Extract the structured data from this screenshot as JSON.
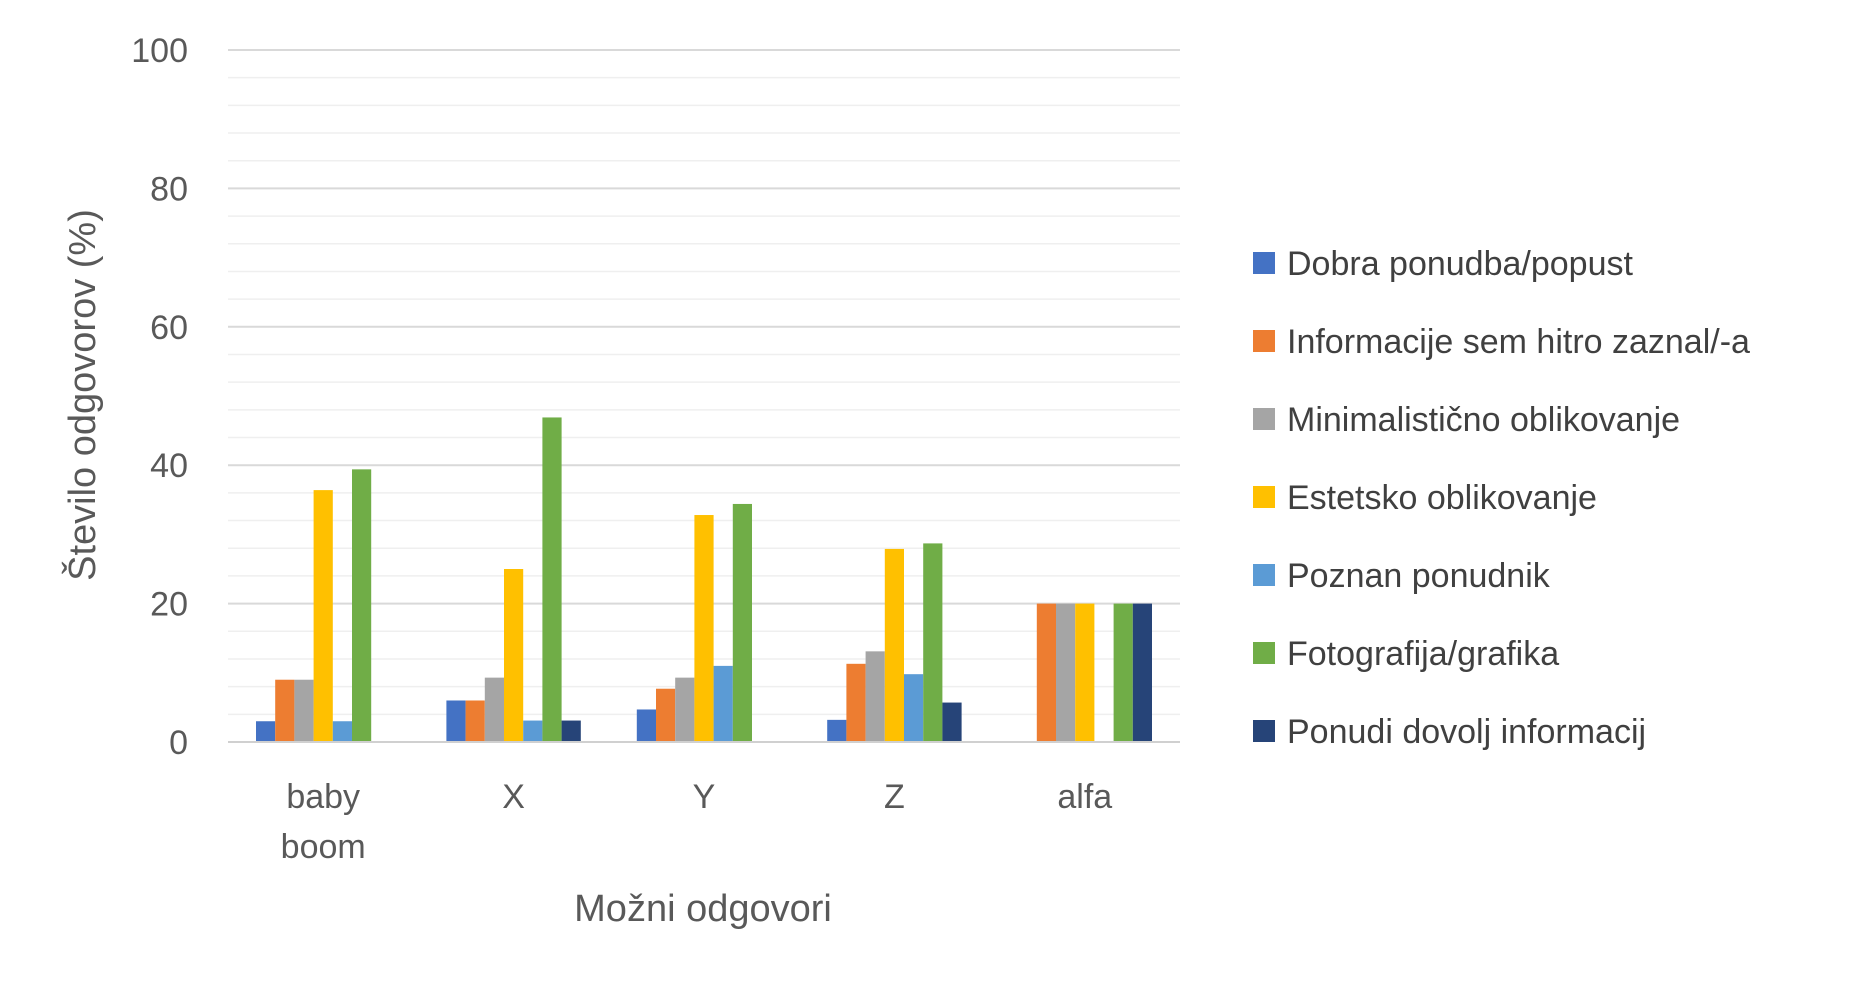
{
  "chart_data": {
    "type": "bar",
    "title": "",
    "xlabel": "Možni odgovori",
    "ylabel": "Število odgovorov (%)",
    "ylim": [
      0,
      100
    ],
    "yticks": [
      0,
      20,
      40,
      60,
      80,
      100
    ],
    "minor_grid_step": 4,
    "legend_position": "right",
    "categories": [
      [
        "baby",
        "boom"
      ],
      [
        "X"
      ],
      [
        "Y"
      ],
      [
        "Z"
      ],
      [
        "alfa"
      ]
    ],
    "series": [
      {
        "name": "Dobra ponudba/popust",
        "color": "#4472C4",
        "values": [
          3,
          6,
          4.7,
          3.2,
          0
        ]
      },
      {
        "name": "Informacije sem hitro zaznal/-a",
        "color": "#ED7D31",
        "values": [
          9,
          6,
          7.7,
          11.3,
          20
        ]
      },
      {
        "name": "Minimalistično oblikovanje",
        "color": "#A5A5A5",
        "values": [
          9,
          9.3,
          9.3,
          13.1,
          20
        ]
      },
      {
        "name": "Estetsko oblikovanje",
        "color": "#FFC000",
        "values": [
          36.4,
          25,
          32.8,
          27.9,
          20
        ]
      },
      {
        "name": "Poznan ponudnik",
        "color": "#5B9BD5",
        "values": [
          3,
          3.1,
          11,
          9.8,
          0
        ]
      },
      {
        "name": "Fotografija/grafika",
        "color": "#70AD47",
        "values": [
          39.4,
          46.9,
          34.4,
          28.7,
          20
        ]
      },
      {
        "name": "Ponudi dovolj informacij",
        "color": "#264478",
        "values": [
          0,
          3.1,
          0,
          5.7,
          20
        ]
      }
    ]
  }
}
